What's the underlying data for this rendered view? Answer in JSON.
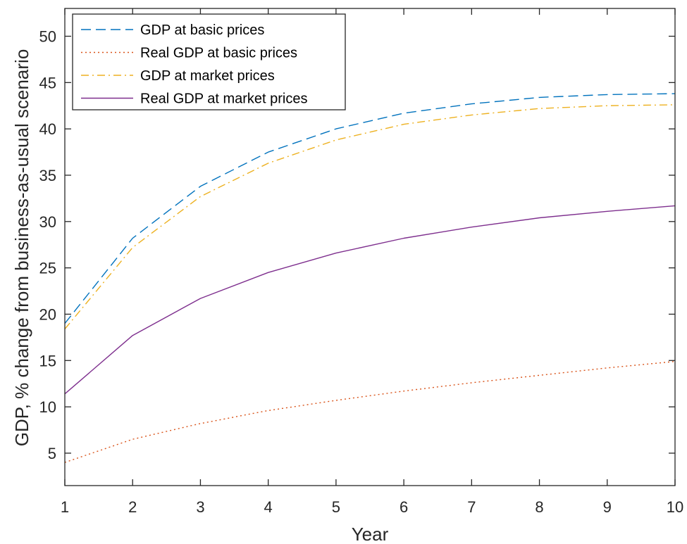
{
  "chart_data": {
    "type": "line",
    "xlabel": "Year",
    "ylabel": "GDP,  % change from business-as-usual scenario",
    "xlim": [
      1,
      10
    ],
    "ylim": [
      1.5,
      53
    ],
    "xticks": [
      1,
      2,
      3,
      4,
      5,
      6,
      7,
      8,
      9,
      10
    ],
    "yticks": [
      5,
      10,
      15,
      20,
      25,
      30,
      35,
      40,
      45,
      50
    ],
    "grid": false,
    "legend_position": "top-left",
    "x": [
      1,
      2,
      3,
      4,
      5,
      6,
      7,
      8,
      9,
      10
    ],
    "series": [
      {
        "name": "GDP at basic prices",
        "color": "#0072BD",
        "style": "dashed",
        "values": [
          19.0,
          28.2,
          33.8,
          37.5,
          40.0,
          41.7,
          42.7,
          43.4,
          43.7,
          43.8
        ]
      },
      {
        "name": "Real GDP at basic prices",
        "color": "#D95319",
        "style": "dotted",
        "values": [
          4.0,
          6.5,
          8.2,
          9.6,
          10.7,
          11.7,
          12.6,
          13.4,
          14.2,
          14.9
        ]
      },
      {
        "name": "GDP at market prices",
        "color": "#EDB120",
        "style": "dashdot",
        "values": [
          18.4,
          27.2,
          32.7,
          36.3,
          38.8,
          40.5,
          41.5,
          42.2,
          42.5,
          42.6
        ]
      },
      {
        "name": "Real GDP at market prices",
        "color": "#7E2F8E",
        "style": "solid",
        "values": [
          11.4,
          17.7,
          21.7,
          24.5,
          26.6,
          28.2,
          29.4,
          30.4,
          31.1,
          31.7
        ]
      }
    ]
  }
}
